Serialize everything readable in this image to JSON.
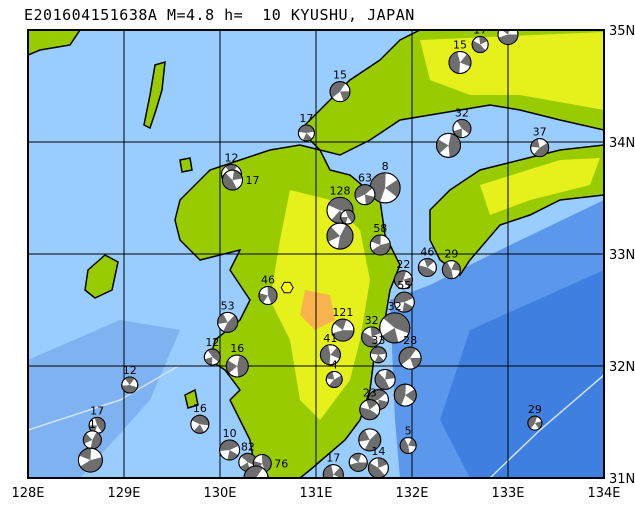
{
  "title": "E201604151638A M=4.8 h=  10 KYUSHU, JAPAN",
  "axes": {
    "lon_ticks": [
      "128E",
      "129E",
      "130E",
      "131E",
      "132E",
      "133E",
      "134E"
    ],
    "lat_ticks": [
      "35N",
      "34N",
      "33N",
      "32N",
      "31N"
    ],
    "lon_range": [
      128,
      134
    ],
    "lat_range": [
      31,
      35
    ]
  },
  "colors": {
    "shallow_sea": "#99ccff",
    "deep_sea": "#3f7fdf",
    "lowland": "#99cc00",
    "upland": "#ffff33",
    "highland": "#ff9966",
    "compression": "#6e6e6e",
    "tension": "#ffffff",
    "epicenter": "#ffff00"
  },
  "epicenter": {
    "lon": 130.7,
    "lat": 32.7
  },
  "mechanisms": [
    {
      "lon": 133.0,
      "lat": 34.96,
      "depth": "15",
      "r": 10
    },
    {
      "lon": 132.71,
      "lat": 34.87,
      "depth": "17",
      "r": 8
    },
    {
      "lon": 132.5,
      "lat": 34.71,
      "depth": "15",
      "r": 11
    },
    {
      "lon": 131.25,
      "lat": 34.45,
      "depth": "15",
      "r": 10
    },
    {
      "lon": 130.9,
      "lat": 34.08,
      "depth": "17",
      "r": 8
    },
    {
      "lon": 132.52,
      "lat": 34.12,
      "depth": "32",
      "r": 9
    },
    {
      "lon": 132.38,
      "lat": 33.97,
      "depth": "",
      "r": 12
    },
    {
      "lon": 133.33,
      "lat": 33.95,
      "depth": "37",
      "r": 9
    },
    {
      "lon": 130.12,
      "lat": 33.71,
      "depth": "12",
      "r": 10
    },
    {
      "lon": 130.13,
      "lat": 33.66,
      "depth": "17",
      "r": 10
    },
    {
      "lon": 131.72,
      "lat": 33.59,
      "depth": "8",
      "r": 15
    },
    {
      "lon": 131.51,
      "lat": 33.53,
      "depth": "63",
      "r": 10
    },
    {
      "lon": 131.25,
      "lat": 33.39,
      "depth": "128",
      "r": 13
    },
    {
      "lon": 131.33,
      "lat": 33.33,
      "depth": "",
      "r": 7
    },
    {
      "lon": 131.25,
      "lat": 33.16,
      "depth": "",
      "r": 13
    },
    {
      "lon": 131.67,
      "lat": 33.08,
      "depth": "58",
      "r": 10
    },
    {
      "lon": 132.16,
      "lat": 32.88,
      "depth": "46",
      "r": 9
    },
    {
      "lon": 132.41,
      "lat": 32.86,
      "depth": "29",
      "r": 9
    },
    {
      "lon": 131.91,
      "lat": 32.77,
      "depth": "22",
      "r": 9
    },
    {
      "lon": 131.92,
      "lat": 32.57,
      "depth": "55",
      "r": 10
    },
    {
      "lon": 131.82,
      "lat": 32.34,
      "depth": "32",
      "r": 15
    },
    {
      "lon": 130.5,
      "lat": 32.63,
      "depth": "46",
      "r": 9
    },
    {
      "lon": 130.08,
      "lat": 32.39,
      "depth": "53",
      "r": 10
    },
    {
      "lon": 131.28,
      "lat": 32.32,
      "depth": "121",
      "r": 11
    },
    {
      "lon": 131.58,
      "lat": 32.26,
      "depth": "32",
      "r": 10
    },
    {
      "lon": 131.15,
      "lat": 32.1,
      "depth": "41",
      "r": 10
    },
    {
      "lon": 131.98,
      "lat": 32.07,
      "depth": "28",
      "r": 11
    },
    {
      "lon": 131.65,
      "lat": 32.1,
      "depth": "33",
      "r": 8
    },
    {
      "lon": 129.92,
      "lat": 32.08,
      "depth": "12",
      "r": 8
    },
    {
      "lon": 130.18,
      "lat": 32.0,
      "depth": "16",
      "r": 11
    },
    {
      "lon": 131.19,
      "lat": 31.88,
      "depth": "4",
      "r": 8
    },
    {
      "lon": 129.06,
      "lat": 31.83,
      "depth": "12",
      "r": 8
    },
    {
      "lon": 131.72,
      "lat": 31.88,
      "depth": "",
      "r": 10
    },
    {
      "lon": 131.93,
      "lat": 31.74,
      "depth": "",
      "r": 11
    },
    {
      "lon": 131.65,
      "lat": 31.7,
      "depth": "",
      "r": 10
    },
    {
      "lon": 129.79,
      "lat": 31.48,
      "depth": "16",
      "r": 9
    },
    {
      "lon": 128.72,
      "lat": 31.47,
      "depth": "17",
      "r": 8
    },
    {
      "lon": 128.67,
      "lat": 31.34,
      "depth": "1",
      "r": 9
    },
    {
      "lon": 128.65,
      "lat": 31.16,
      "depth": "",
      "r": 12
    },
    {
      "lon": 131.56,
      "lat": 31.61,
      "depth": "23",
      "r": 10
    },
    {
      "lon": 131.96,
      "lat": 31.29,
      "depth": "5",
      "r": 8
    },
    {
      "lon": 133.28,
      "lat": 31.49,
      "depth": "29",
      "r": 7
    },
    {
      "lon": 130.1,
      "lat": 31.25,
      "depth": "10",
      "r": 10
    },
    {
      "lon": 130.29,
      "lat": 31.14,
      "depth": "82",
      "r": 9
    },
    {
      "lon": 130.44,
      "lat": 31.13,
      "depth": "76",
      "r": 9
    },
    {
      "lon": 131.56,
      "lat": 31.34,
      "depth": "",
      "r": 11
    },
    {
      "lon": 131.44,
      "lat": 31.14,
      "depth": "",
      "r": 9
    },
    {
      "lon": 131.65,
      "lat": 31.09,
      "depth": "14",
      "r": 10
    },
    {
      "lon": 131.18,
      "lat": 31.03,
      "depth": "17",
      "r": 10
    },
    {
      "lon": 130.375,
      "lat": 31.0,
      "depth": "",
      "r": 12
    }
  ]
}
